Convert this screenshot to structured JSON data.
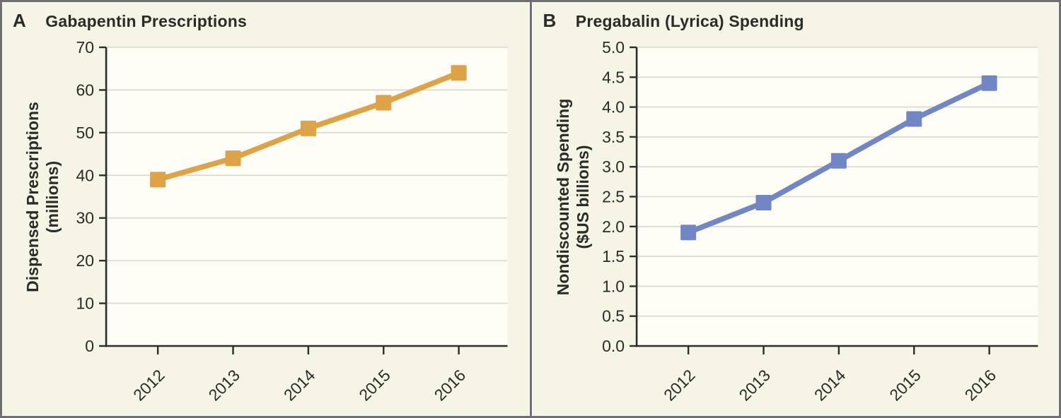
{
  "figure": {
    "background_color": "#f5f4e5",
    "plot_background_color": "#fefef6",
    "border_color": "#707070",
    "grid_color": "#d8d8d3",
    "axis_color": "#2d2d2a",
    "text_color": "#2b2b28"
  },
  "panels": [
    {
      "label": "A",
      "title": "Gabapentin Prescriptions",
      "ylabel_line1": "Dispensed Prescriptions",
      "ylabel_line2": "(millions)"
    },
    {
      "label": "B",
      "title": "Pregabalin (Lyrica) Spending",
      "ylabel_line1": "Nondiscounted Spending",
      "ylabel_line2": "($US billions)"
    }
  ],
  "chart_data": [
    {
      "type": "line",
      "title": "Gabapentin Prescriptions",
      "categories": [
        "2012",
        "2013",
        "2014",
        "2015",
        "2016"
      ],
      "values": [
        39,
        44,
        51,
        57,
        64
      ],
      "ylabel": "Dispensed Prescriptions (millions)",
      "xlabel": "",
      "ylim": [
        0,
        70
      ],
      "y_ticks": [
        0,
        10,
        20,
        30,
        40,
        50,
        60,
        70
      ],
      "y_tick_labels": [
        "0",
        "10",
        "20",
        "30",
        "40",
        "50",
        "60",
        "70"
      ],
      "grid": true,
      "legend": false,
      "line_color": "#dea247",
      "marker": "square"
    },
    {
      "type": "line",
      "title": "Pregabalin (Lyrica) Spending",
      "categories": [
        "2012",
        "2013",
        "2014",
        "2015",
        "2016"
      ],
      "values": [
        1.9,
        2.4,
        3.1,
        3.8,
        4.4
      ],
      "ylabel": "Nondiscounted Spending ($US billions)",
      "xlabel": "",
      "ylim": [
        0,
        5
      ],
      "y_ticks": [
        0,
        0.5,
        1,
        1.5,
        2,
        2.5,
        3,
        3.5,
        4,
        4.5,
        5
      ],
      "y_tick_labels": [
        "0.0",
        "0.5",
        "1.0",
        "1.5",
        "2.0",
        "2.5",
        "3.0",
        "3.5",
        "4.0",
        "4.5",
        "5.0"
      ],
      "grid": true,
      "legend": false,
      "line_color": "#7187c5",
      "marker": "square"
    }
  ]
}
